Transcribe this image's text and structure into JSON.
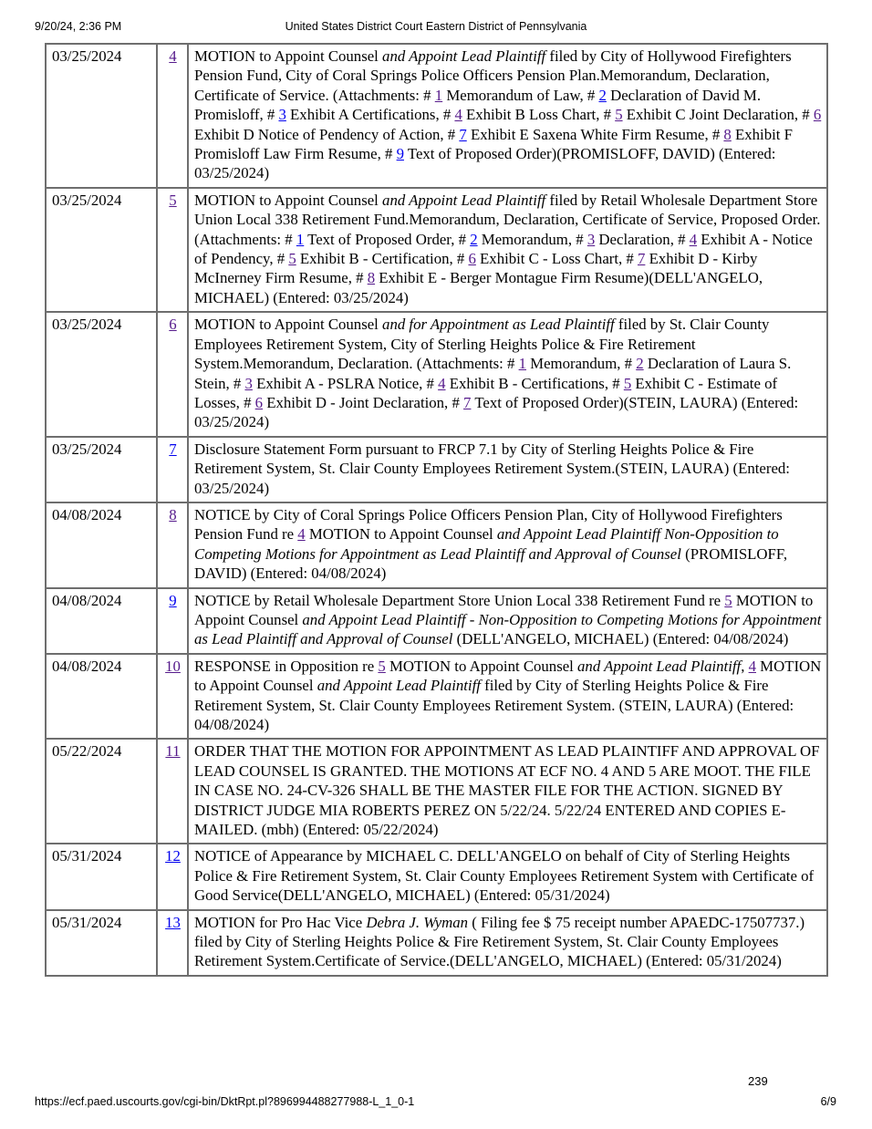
{
  "page": {
    "print_date": "9/20/24, 2:36 PM",
    "header_title": "United States District Court Eastern District of Pennsylvania",
    "doc_page_number": "239",
    "footer_url": "https://ecf.paed.uscourts.gov/cgi-bin/DktRpt.pl?896994488277988-L_1_0-1",
    "page_indicator": "6/9"
  },
  "colors": {
    "link": "#0000EE",
    "link_visited": "#551A8B",
    "table_border": "#6e6e6e",
    "text": "#000000"
  },
  "table": {
    "rows": [
      {
        "date": "03/25/2024",
        "number": "4",
        "number_visited": true,
        "segments": [
          [
            "n",
            "MOTION to Appoint Counsel "
          ],
          [
            "i",
            "and Appoint Lead Plaintiff"
          ],
          [
            "n",
            " filed by City of Hollywood Firefighters Pension Fund, City of Coral Springs Police Officers Pension Plan.Memorandum, Declaration, Certificate of Service. (Attachments: # "
          ],
          [
            "v",
            "1"
          ],
          [
            "n",
            " Memorandum of Law, # "
          ],
          [
            "l",
            "2"
          ],
          [
            "n",
            " Declaration of David M. Promisloff, # "
          ],
          [
            "l",
            "3"
          ],
          [
            "n",
            " Exhibit A Certifications, # "
          ],
          [
            "v",
            "4"
          ],
          [
            "n",
            " Exhibit B Loss Chart, # "
          ],
          [
            "v",
            "5"
          ],
          [
            "n",
            " Exhibit C Joint Declaration, # "
          ],
          [
            "v",
            "6"
          ],
          [
            "n",
            " Exhibit D Notice of Pendency of Action, # "
          ],
          [
            "l",
            "7"
          ],
          [
            "n",
            " Exhibit E Saxena White Firm Resume, # "
          ],
          [
            "v",
            "8"
          ],
          [
            "n",
            " Exhibit F Promisloff Law Firm Resume, # "
          ],
          [
            "l",
            "9"
          ],
          [
            "n",
            " Text of Proposed Order)(PROMISLOFF, DAVID) (Entered: 03/25/2024)"
          ]
        ]
      },
      {
        "date": "03/25/2024",
        "number": "5",
        "number_visited": true,
        "segments": [
          [
            "n",
            "MOTION to Appoint Counsel "
          ],
          [
            "i",
            "and Appoint Lead Plaintiff"
          ],
          [
            "n",
            " filed by Retail Wholesale Department Store Union Local 338 Retirement Fund.Memorandum, Declaration, Certificate of Service, Proposed Order. (Attachments: # "
          ],
          [
            "l",
            "1"
          ],
          [
            "n",
            " Text of Proposed Order, # "
          ],
          [
            "l",
            "2"
          ],
          [
            "n",
            " Memorandum, # "
          ],
          [
            "v",
            "3"
          ],
          [
            "n",
            " Declaration, # "
          ],
          [
            "v",
            "4"
          ],
          [
            "n",
            " Exhibit A - Notice of Pendency, # "
          ],
          [
            "v",
            "5"
          ],
          [
            "n",
            " Exhibit B - Certification, # "
          ],
          [
            "v",
            "6"
          ],
          [
            "n",
            " Exhibit C - Loss Chart, # "
          ],
          [
            "v",
            "7"
          ],
          [
            "n",
            " Exhibit D - Kirby McInerney Firm Resume, # "
          ],
          [
            "v",
            "8"
          ],
          [
            "n",
            " Exhibit E - Berger Montague Firm Resume)(DELL'ANGELO, MICHAEL) (Entered: 03/25/2024)"
          ]
        ]
      },
      {
        "date": "03/25/2024",
        "number": "6",
        "number_visited": true,
        "segments": [
          [
            "n",
            "MOTION to Appoint Counsel "
          ],
          [
            "i",
            "and for Appointment as Lead Plaintiff"
          ],
          [
            "n",
            " filed by St. Clair County Employees Retirement System, City of Sterling Heights Police & Fire Retirement System.Memorandum, Declaration. (Attachments: # "
          ],
          [
            "v",
            "1"
          ],
          [
            "n",
            " Memorandum, # "
          ],
          [
            "v",
            "2"
          ],
          [
            "n",
            " Declaration of Laura S. Stein, # "
          ],
          [
            "v",
            "3"
          ],
          [
            "n",
            " Exhibit A - PSLRA Notice, # "
          ],
          [
            "v",
            "4"
          ],
          [
            "n",
            " Exhibit B - Certifications, # "
          ],
          [
            "v",
            "5"
          ],
          [
            "n",
            " Exhibit C - Estimate of Losses, # "
          ],
          [
            "v",
            "6"
          ],
          [
            "n",
            " Exhibit D - Joint Declaration, # "
          ],
          [
            "v",
            "7"
          ],
          [
            "n",
            " Text of Proposed Order)(STEIN, LAURA) (Entered: 03/25/2024)"
          ]
        ]
      },
      {
        "date": "03/25/2024",
        "number": "7",
        "number_visited": false,
        "segments": [
          [
            "n",
            "Disclosure Statement Form pursuant to FRCP 7.1 by City of Sterling Heights Police & Fire Retirement System, St. Clair County Employees Retirement System.(STEIN, LAURA) (Entered: 03/25/2024)"
          ]
        ]
      },
      {
        "date": "04/08/2024",
        "number": "8",
        "number_visited": true,
        "segments": [
          [
            "n",
            "NOTICE by City of Coral Springs Police Officers Pension Plan, City of Hollywood Firefighters Pension Fund re "
          ],
          [
            "v",
            "4"
          ],
          [
            "n",
            " MOTION to Appoint Counsel "
          ],
          [
            "i",
            "and Appoint Lead Plaintiff Non-Opposition to Competing Motions for Appointment as Lead Plaintiff and Approval of Counsel"
          ],
          [
            "n",
            " (PROMISLOFF, DAVID) (Entered: 04/08/2024)"
          ]
        ]
      },
      {
        "date": "04/08/2024",
        "number": "9",
        "number_visited": false,
        "segments": [
          [
            "n",
            "NOTICE by Retail Wholesale Department Store Union Local 338 Retirement Fund re "
          ],
          [
            "v",
            "5"
          ],
          [
            "n",
            " MOTION to Appoint Counsel "
          ],
          [
            "i",
            "and Appoint Lead Plaintiff - Non-Opposition to Competing Motions for Appointment as Lead Plaintiff and Approval of Counsel"
          ],
          [
            "n",
            " (DELL'ANGELO, MICHAEL) (Entered: 04/08/2024)"
          ]
        ]
      },
      {
        "date": "04/08/2024",
        "number": "10",
        "number_visited": true,
        "segments": [
          [
            "n",
            "RESPONSE in Opposition re "
          ],
          [
            "v",
            "5"
          ],
          [
            "n",
            " MOTION to Appoint Counsel "
          ],
          [
            "i",
            "and Appoint Lead Plaintiff"
          ],
          [
            "n",
            ", "
          ],
          [
            "v",
            "4"
          ],
          [
            "n",
            " MOTION to Appoint Counsel "
          ],
          [
            "i",
            "and Appoint Lead Plaintiff"
          ],
          [
            "n",
            " filed by City of Sterling Heights Police & Fire Retirement System, St. Clair County Employees Retirement System. (STEIN, LAURA) (Entered: 04/08/2024)"
          ]
        ]
      },
      {
        "date": "05/22/2024",
        "number": "11",
        "number_visited": true,
        "segments": [
          [
            "n",
            "ORDER THAT THE MOTION FOR APPOINTMENT AS LEAD PLAINTIFF AND APPROVAL OF LEAD COUNSEL IS GRANTED. THE MOTIONS AT ECF NO. 4 AND 5 ARE MOOT. THE FILE IN CASE NO. 24-CV-326 SHALL BE THE MASTER FILE FOR THE ACTION. SIGNED BY DISTRICT JUDGE MIA ROBERTS PEREZ ON 5/22/24. 5/22/24 ENTERED AND COPIES E-MAILED. (mbh) (Entered: 05/22/2024)"
          ]
        ]
      },
      {
        "date": "05/31/2024",
        "number": "12",
        "number_visited": false,
        "segments": [
          [
            "n",
            "NOTICE of Appearance by MICHAEL C. DELL'ANGELO on behalf of City of Sterling Heights Police & Fire Retirement System, St. Clair County Employees Retirement System with Certificate of Good Service(DELL'ANGELO, MICHAEL) (Entered: 05/31/2024)"
          ]
        ]
      },
      {
        "date": "05/31/2024",
        "number": "13",
        "number_visited": false,
        "segments": [
          [
            "n",
            "MOTION for Pro Hac Vice "
          ],
          [
            "i",
            "Debra J. Wyman"
          ],
          [
            "n",
            " ( Filing fee $ 75 receipt number APAEDC-17507737.) filed by City of Sterling Heights Police & Fire Retirement System, St. Clair County Employees Retirement System.Certificate of Service.(DELL'ANGELO, MICHAEL) (Entered: 05/31/2024)"
          ]
        ]
      }
    ]
  }
}
